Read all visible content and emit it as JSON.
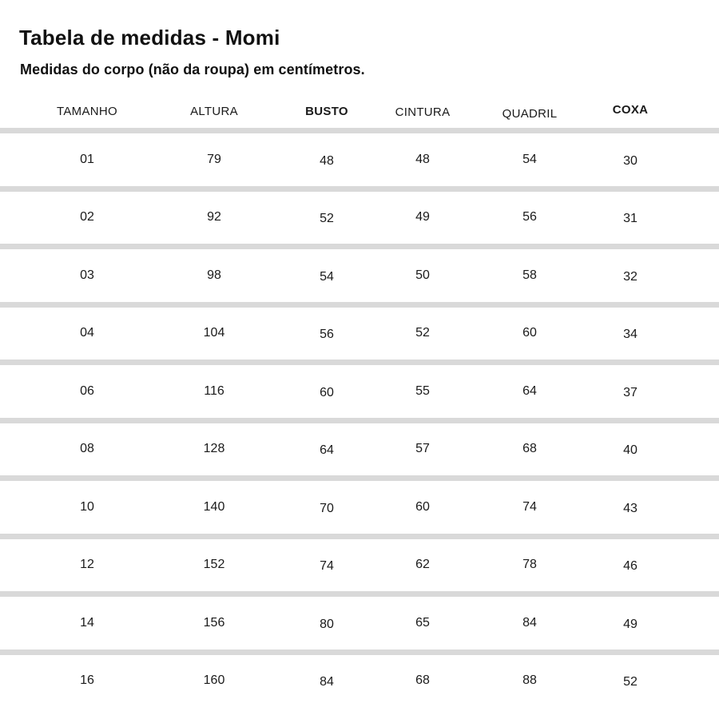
{
  "header": {
    "title": "Tabela de medidas - Momi",
    "subtitle": "Medidas do corpo (não da roupa) em centímetros."
  },
  "table": {
    "columns": [
      "TAMANHO",
      "ALTURA",
      "BUSTO",
      "CINTURA",
      "QUADRIL",
      "COXA"
    ],
    "rows": [
      [
        "01",
        "79",
        "48",
        "48",
        "54",
        "30"
      ],
      [
        "02",
        "92",
        "52",
        "49",
        "56",
        "31"
      ],
      [
        "03",
        "98",
        "54",
        "50",
        "58",
        "32"
      ],
      [
        "04",
        "104",
        "56",
        "52",
        "60",
        "34"
      ],
      [
        "06",
        "116",
        "60",
        "55",
        "64",
        "37"
      ],
      [
        "08",
        "128",
        "64",
        "57",
        "68",
        "40"
      ],
      [
        "10",
        "140",
        "70",
        "60",
        "74",
        "43"
      ],
      [
        "12",
        "152",
        "74",
        "62",
        "78",
        "46"
      ],
      [
        "14",
        "156",
        "80",
        "65",
        "84",
        "49"
      ],
      [
        "16",
        "160",
        "84",
        "68",
        "88",
        "52"
      ]
    ]
  },
  "colors": {
    "divider": "#d9d9d9",
    "text": "#1a1a1a",
    "background": "#ffffff"
  }
}
